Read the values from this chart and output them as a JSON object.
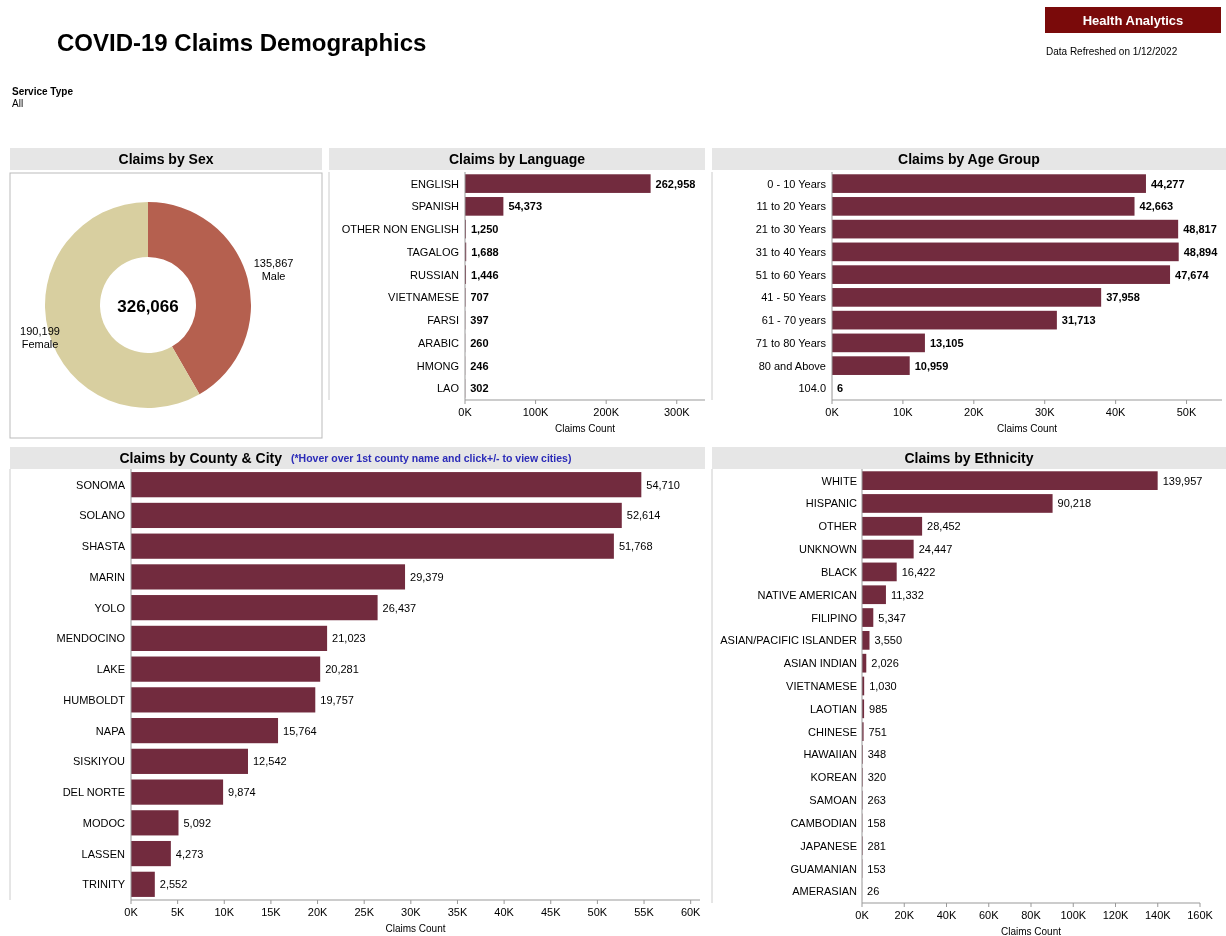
{
  "chart_data": [
    {
      "type": "other",
      "title": "COVID-19 Claims Demographics",
      "annotations": [
        "Service Type",
        "All",
        "Health Analytics",
        "Data Refreshed on 1/12/2022"
      ]
    },
    {
      "type": "donut",
      "title": "Claims by Sex",
      "categories": [
        "Male",
        "Female"
      ],
      "values": [
        135867,
        190199
      ],
      "colors": [
        "#b5604f",
        "#d8cfa0"
      ],
      "value_labels": [
        "135,867",
        "190,199"
      ],
      "annotations": [
        "326,066"
      ]
    },
    {
      "type": "bar",
      "orientation": "horizontal",
      "title": "Claims by Language",
      "xlabel": "Claims Count",
      "color": "#722b3e",
      "categories": [
        "ENGLISH",
        "SPANISH",
        "OTHER NON ENGLISH",
        "TAGALOG",
        "RUSSIAN",
        "VIETNAMESE",
        "FARSI",
        "ARABIC",
        "HMONG",
        "LAO"
      ],
      "values": [
        262958,
        54373,
        1250,
        1688,
        1446,
        707,
        397,
        260,
        246,
        302
      ],
      "value_labels": [
        "262,958",
        "54,373",
        "1,250",
        "1,688",
        "1,446",
        "707",
        "397",
        "260",
        "246",
        "302"
      ],
      "xlim": [
        0,
        340000
      ],
      "xticks": [
        {
          "value": 0,
          "label": "0K"
        },
        {
          "value": 100000,
          "label": "100K"
        },
        {
          "value": 200000,
          "label": "200K"
        },
        {
          "value": 300000,
          "label": "300K"
        }
      ]
    },
    {
      "type": "bar",
      "orientation": "horizontal",
      "title": "Claims by Age Group",
      "xlabel": "Claims Count",
      "color": "#722b3e",
      "categories": [
        "0 - 10 Years",
        "11 to 20 Years",
        "21 to 30 Years",
        "31 to 40 Years",
        "51 to 60 Years",
        "41 - 50 Years",
        "61 - 70 years",
        "71 to 80 Years",
        "80 and Above",
        "104.0"
      ],
      "values": [
        44277,
        42663,
        48817,
        48894,
        47674,
        37958,
        31713,
        13105,
        10959,
        6
      ],
      "value_labels": [
        "44,277",
        "42,663",
        "48,817",
        "48,894",
        "47,674",
        "37,958",
        "31,713",
        "13,105",
        "10,959",
        "6"
      ],
      "xlim": [
        0,
        55000
      ],
      "xticks": [
        {
          "value": 0,
          "label": "0K"
        },
        {
          "value": 10000,
          "label": "10K"
        },
        {
          "value": 20000,
          "label": "20K"
        },
        {
          "value": 30000,
          "label": "30K"
        },
        {
          "value": 40000,
          "label": "40K"
        },
        {
          "value": 50000,
          "label": "50K"
        }
      ]
    },
    {
      "type": "bar",
      "orientation": "horizontal",
      "title": "Claims by County & City",
      "subtitle": "(*Hover over 1st county name and click+/- to view cities)",
      "xlabel": "Claims Count",
      "color": "#722b3e",
      "categories": [
        "SONOMA",
        "SOLANO",
        "SHASTA",
        "MARIN",
        "YOLO",
        "MENDOCINO",
        "LAKE",
        "HUMBOLDT",
        "NAPA",
        "SISKIYOU",
        "DEL NORTE",
        "MODOC",
        "LASSEN",
        "TRINITY"
      ],
      "values": [
        54710,
        52614,
        51768,
        29379,
        26437,
        21023,
        20281,
        19757,
        15764,
        12542,
        9874,
        5092,
        4273,
        2552
      ],
      "value_labels": [
        "54,710",
        "52,614",
        "51,768",
        "29,379",
        "26,437",
        "21,023",
        "20,281",
        "19,757",
        "15,764",
        "12,542",
        "9,874",
        "5,092",
        "4,273",
        "2,552"
      ],
      "xlim": [
        0,
        61000
      ],
      "xticks": [
        {
          "value": 0,
          "label": "0K"
        },
        {
          "value": 5000,
          "label": "5K"
        },
        {
          "value": 10000,
          "label": "10K"
        },
        {
          "value": 15000,
          "label": "15K"
        },
        {
          "value": 20000,
          "label": "20K"
        },
        {
          "value": 25000,
          "label": "25K"
        },
        {
          "value": 30000,
          "label": "30K"
        },
        {
          "value": 35000,
          "label": "35K"
        },
        {
          "value": 40000,
          "label": "40K"
        },
        {
          "value": 45000,
          "label": "45K"
        },
        {
          "value": 50000,
          "label": "50K"
        },
        {
          "value": 55000,
          "label": "55K"
        },
        {
          "value": 60000,
          "label": "60K"
        }
      ]
    },
    {
      "type": "bar",
      "orientation": "horizontal",
      "title": "Claims by Ethnicity",
      "xlabel": "Claims Count",
      "color": "#722b3e",
      "categories": [
        "WHITE",
        "HISPANIC",
        "OTHER",
        "UNKNOWN",
        "BLACK",
        "NATIVE AMERICAN",
        "FILIPINO",
        "ASIAN/PACIFIC ISLANDER",
        "ASIAN INDIAN",
        "VIETNAMESE",
        "LAOTIAN",
        "CHINESE",
        "HAWAIIAN",
        "KOREAN",
        "SAMOAN",
        "CAMBODIAN",
        "JAPANESE",
        "GUAMANIAN",
        "AMERASIAN"
      ],
      "values": [
        139957,
        90218,
        28452,
        24447,
        16422,
        11332,
        5347,
        3550,
        2026,
        1030,
        985,
        751,
        348,
        320,
        263,
        158,
        281,
        153,
        26
      ],
      "value_labels": [
        "139,957",
        "90,218",
        "28,452",
        "24,447",
        "16,422",
        "11,332",
        "5,347",
        "3,550",
        "2,026",
        "1,030",
        "985",
        "751",
        "348",
        "320",
        "263",
        "158",
        "281",
        "153",
        "26"
      ],
      "xlim": [
        0,
        160000
      ],
      "xticks": [
        {
          "value": 0,
          "label": "0K"
        },
        {
          "value": 20000,
          "label": "20K"
        },
        {
          "value": 40000,
          "label": "40K"
        },
        {
          "value": 60000,
          "label": "60K"
        },
        {
          "value": 80000,
          "label": "80K"
        },
        {
          "value": 100000,
          "label": "100K"
        },
        {
          "value": 120000,
          "label": "120K"
        },
        {
          "value": 140000,
          "label": "140K"
        },
        {
          "value": 160000,
          "label": "160K"
        }
      ]
    }
  ]
}
